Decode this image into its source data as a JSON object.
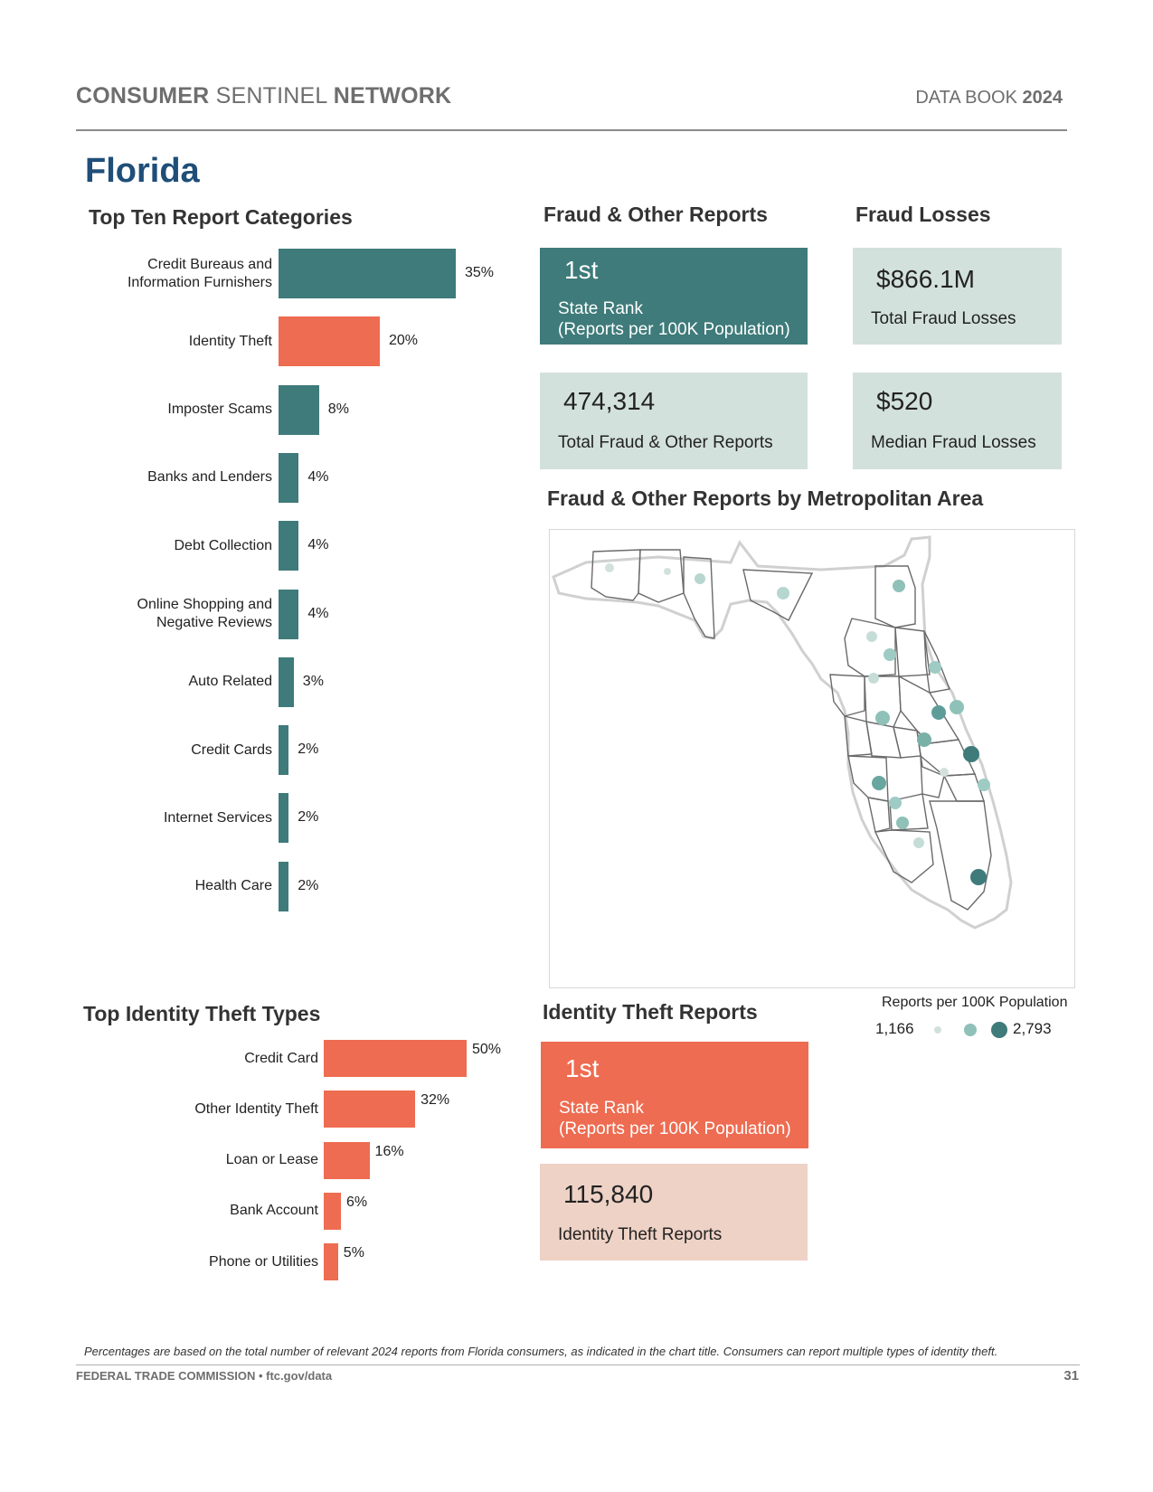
{
  "header": {
    "brand_word1": "CONSUMER",
    "brand_word2": "SENTINEL",
    "brand_word3": "NETWORK",
    "databook_label": "DATA BOOK",
    "databook_year": "2024"
  },
  "state_name": "Florida",
  "top_categories": {
    "title": "Top Ten Report Categories",
    "color_default": "#3e7b7a",
    "color_highlight": "#ee6c51",
    "items": [
      {
        "label_line1": "Credit Bureaus and",
        "label_line2": "Information Furnishers",
        "value": 35,
        "value_label": "35%",
        "highlight": false
      },
      {
        "label_line1": "Identity Theft",
        "label_line2": "",
        "value": 20,
        "value_label": "20%",
        "highlight": true
      },
      {
        "label_line1": "Imposter Scams",
        "label_line2": "",
        "value": 8,
        "value_label": "8%",
        "highlight": false
      },
      {
        "label_line1": "Banks and Lenders",
        "label_line2": "",
        "value": 4,
        "value_label": "4%",
        "highlight": false
      },
      {
        "label_line1": "Debt Collection",
        "label_line2": "",
        "value": 4,
        "value_label": "4%",
        "highlight": false
      },
      {
        "label_line1": "Online Shopping and",
        "label_line2": "Negative Reviews",
        "value": 4,
        "value_label": "4%",
        "highlight": false
      },
      {
        "label_line1": "Auto Related",
        "label_line2": "",
        "value": 3,
        "value_label": "3%",
        "highlight": false
      },
      {
        "label_line1": "Credit Cards",
        "label_line2": "",
        "value": 2,
        "value_label": "2%",
        "highlight": false
      },
      {
        "label_line1": "Internet Services",
        "label_line2": "",
        "value": 2,
        "value_label": "2%",
        "highlight": false
      },
      {
        "label_line1": "Health Care",
        "label_line2": "",
        "value": 2,
        "value_label": "2%",
        "highlight": false
      }
    ]
  },
  "fraud_reports": {
    "title": "Fraud & Other Reports",
    "rank_value": "1st",
    "rank_label_line1": "State Rank",
    "rank_label_line2": "(Reports per 100K Population)",
    "total_value": "474,314",
    "total_label": "Total Fraud & Other Reports"
  },
  "fraud_losses": {
    "title": "Fraud Losses",
    "total_value": "$866.1M",
    "total_label": "Total Fraud Losses",
    "median_value": "$520",
    "median_label": "Median Fraud Losses"
  },
  "metro_map": {
    "title": "Fraud & Other Reports by Metropolitan Area",
    "legend_title": "Reports per 100K Population",
    "legend_min": "1,166",
    "legend_max": "2,793",
    "legend_colors": [
      "#d3e1dc",
      "#8fc1b9",
      "#3e7b7a"
    ]
  },
  "identity_types": {
    "title": "Top Identity Theft Types",
    "color": "#ee6c51",
    "items": [
      {
        "label": "Credit Card",
        "value": 50,
        "value_label": "50%"
      },
      {
        "label": "Other Identity Theft",
        "value": 32,
        "value_label": "32%"
      },
      {
        "label": "Loan or Lease",
        "value": 16,
        "value_label": "16%"
      },
      {
        "label": "Bank Account",
        "value": 6,
        "value_label": "6%"
      },
      {
        "label": "Phone or Utilities",
        "value": 5,
        "value_label": "5%"
      }
    ]
  },
  "identity_reports": {
    "title": "Identity Theft Reports",
    "rank_value": "1st",
    "rank_label_line1": "State Rank",
    "rank_label_line2": "(Reports per 100K Population)",
    "total_value": "115,840",
    "total_label": "Identity Theft Reports"
  },
  "footer": {
    "note": "Percentages are based on the total number of relevant 2024 reports from Florida consumers, as indicated in the chart title.  Consumers can report multiple types of identity theft.",
    "org": "FEDERAL TRADE COMMISSION • ftc.gov/data",
    "page_number": "31"
  }
}
